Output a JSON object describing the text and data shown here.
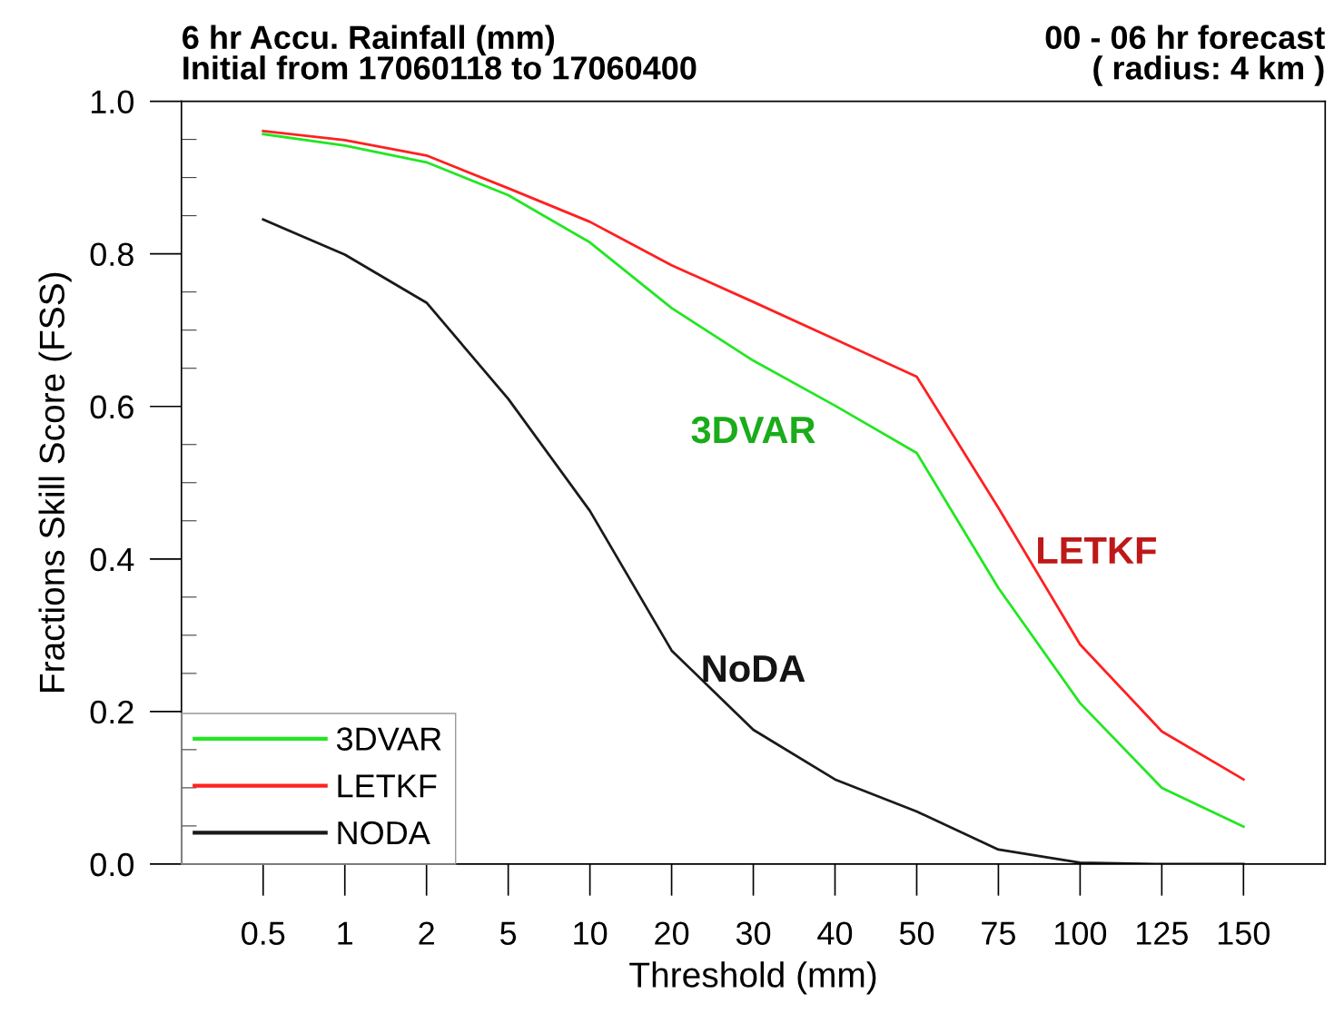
{
  "chart_data": {
    "type": "line",
    "title": "6 hr Accu. Rainfall (mm)\nInitial from 17060118 to 17060400",
    "subtitle": "00 - 06 hr forecast\n( radius: 4 km )",
    "xlabel": "Threshold (mm)",
    "ylabel": "Fractions Skill Score (FSS)",
    "categories": [
      "0.5",
      "1",
      "2",
      "5",
      "10",
      "20",
      "30",
      "40",
      "50",
      "75",
      "100",
      "125",
      "150"
    ],
    "series": [
      {
        "name": "3DVAR",
        "color": "#22e622",
        "values": [
          0.957,
          0.942,
          0.92,
          0.877,
          0.815,
          0.729,
          0.66,
          0.601,
          0.539,
          0.362,
          0.211,
          0.1,
          0.049
        ]
      },
      {
        "name": "LETKF",
        "color": "#ff2020",
        "values": [
          0.961,
          0.949,
          0.929,
          0.886,
          0.842,
          0.785,
          0.737,
          0.688,
          0.639,
          0.467,
          0.288,
          0.174,
          0.111
        ]
      },
      {
        "name": "NODA",
        "color": "#1a1a1a",
        "values": [
          0.845,
          0.799,
          0.736,
          0.61,
          0.463,
          0.28,
          0.176,
          0.111,
          0.069,
          0.019,
          0.002,
          0.0,
          0.0
        ]
      }
    ],
    "annotations": [
      "3DVAR",
      "LETKF",
      "NoDA"
    ],
    "ylim": [
      0,
      1
    ],
    "yticks": [
      {
        "value": 0,
        "label": "0.0"
      },
      0.2,
      0.4,
      0.6,
      0.8,
      {
        "value": 1,
        "label": "1.0"
      }
    ],
    "grid": false,
    "legend": "bottom left",
    "marker": "none",
    "line_style": "solid"
  }
}
